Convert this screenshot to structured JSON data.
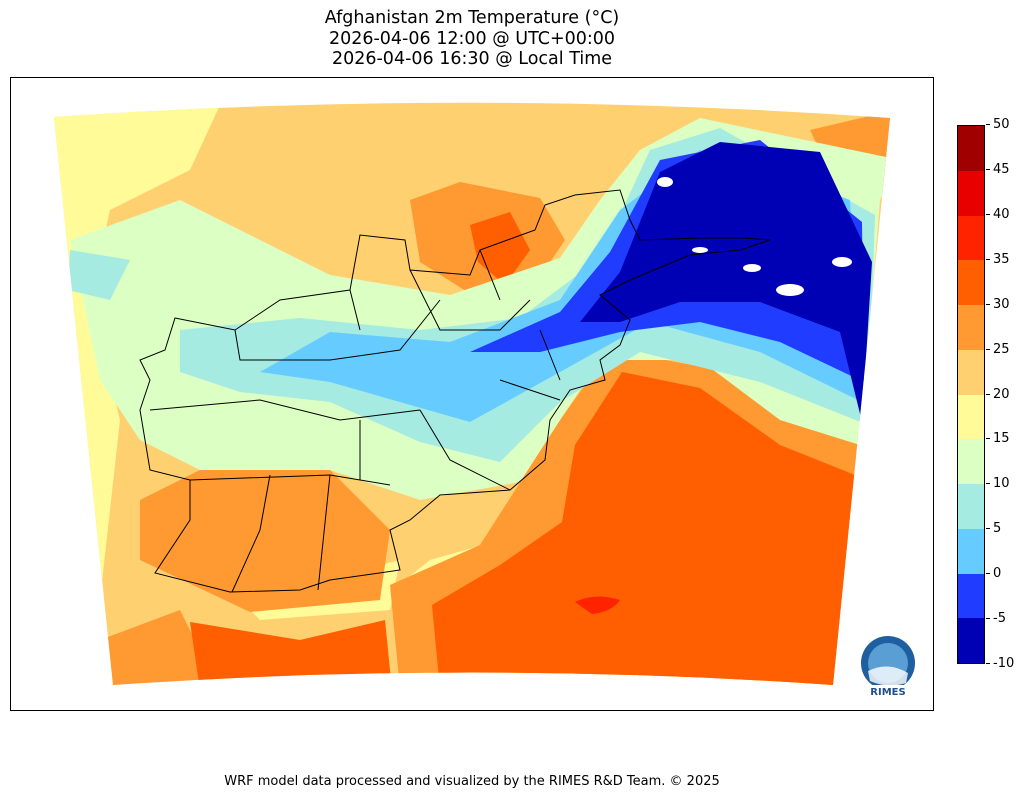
{
  "chart_data": {
    "type": "heatmap",
    "title": [
      "Afghanistan 2m Temperature (°C)",
      "2026-04-06 12:00 @ UTC+00:00",
      "2026-04-06 16:30 @ Local Time"
    ],
    "variable": "2m Temperature",
    "units": "°C",
    "colorbar": {
      "ticks": [
        "50",
        "45",
        "40",
        "35",
        "30",
        "25",
        "20",
        "15",
        "10",
        "5",
        "0",
        "-5",
        "-10"
      ],
      "range": [
        -10,
        50
      ],
      "step": 5,
      "colors": [
        "#0000b4",
        "#1f3cff",
        "#66ccff",
        "#a5ebe1",
        "#dcffc3",
        "#fffb98",
        "#ffd070",
        "#ff9932",
        "#ff5f00",
        "#ff2300",
        "#e60000",
        "#a00000"
      ]
    },
    "region": "Afghanistan",
    "logo_text": "RIMES"
  },
  "footer": "WRF model data processed and visualized by the RIMES R&D Team. © 2025"
}
